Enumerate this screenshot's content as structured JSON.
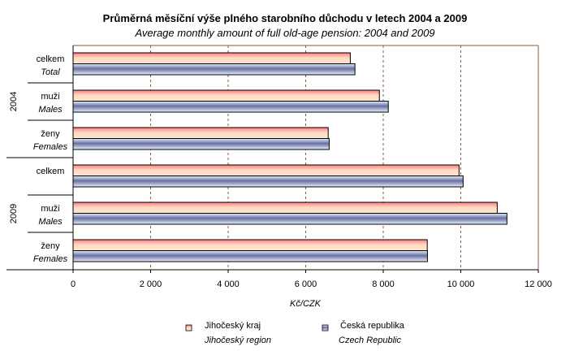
{
  "chart_data": {
    "type": "bar",
    "orientation": "horizontal",
    "title": "Průměrná měsíční výše plného starobního důchodu v letech 2004 a 2009",
    "subtitle": "Average monthly amount of full old-age pension: 2004 and 2009",
    "xlabel": "Kč/CZK",
    "xlim": [
      0,
      12000
    ],
    "xticks": [
      0,
      2000,
      4000,
      6000,
      8000,
      10000,
      12000
    ],
    "xtick_labels": [
      "0",
      "2 000",
      "4 000",
      "6 000",
      "8 000",
      "10 000",
      "12 000"
    ],
    "grid": "vertical dashed",
    "groups": [
      {
        "year": "2004",
        "categories": [
          {
            "label_cz": "celkem",
            "label_en": "Total"
          },
          {
            "label_cz": "muži",
            "label_en": "Males"
          },
          {
            "label_cz": "ženy",
            "label_en": "Females"
          }
        ]
      },
      {
        "year": "2009",
        "categories": [
          {
            "label_cz": "celkem",
            "label_en": ""
          },
          {
            "label_cz": "muži",
            "label_en": "Males"
          },
          {
            "label_cz": "ženy",
            "label_en": "Females"
          }
        ]
      }
    ],
    "series": [
      {
        "name": "Jihočeský kraj",
        "name_en": "Jihočeský region",
        "color": "#f7a59a",
        "values": [
          7150,
          7900,
          6580,
          9955,
          10940,
          9135
        ]
      },
      {
        "name": "Česká republika",
        "name_en": "Czech Republic",
        "color": "#6b6fa3",
        "values": [
          7270,
          8130,
          6605,
          10060,
          11190,
          9140
        ]
      }
    ],
    "legend_position": "bottom"
  },
  "colors": {
    "axis_border": "#8b5a3c",
    "grid": "#8b5a3c"
  }
}
